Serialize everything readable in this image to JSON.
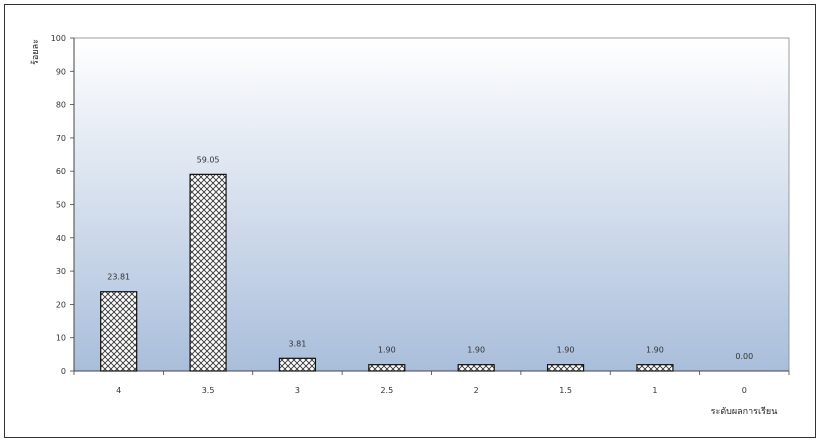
{
  "chart_data": {
    "type": "bar",
    "categories": [
      "4",
      "3.5",
      "3",
      "2.5",
      "2",
      "1.5",
      "1",
      "0"
    ],
    "values": [
      23.81,
      59.05,
      3.81,
      1.9,
      1.9,
      1.9,
      1.9,
      0.0
    ],
    "value_labels": [
      "23.81",
      "59.05",
      "3.81",
      "1.90",
      "1.90",
      "1.90",
      "1.90",
      "0.00"
    ],
    "yticks": [
      "0",
      "10",
      "20",
      "30",
      "40",
      "50",
      "60",
      "70",
      "80",
      "90",
      "100"
    ],
    "ylim": [
      0,
      100
    ],
    "xlabel": "ระดับผลการเรียน",
    "ylabel": "ร้อยละ",
    "title": "",
    "grid": false,
    "bar_pattern": "crosshatch",
    "colors": {
      "plot_gradient_top": "#ffffff",
      "plot_gradient_bottom": "#a9bedb",
      "bar_fill": "#ffffff",
      "bar_hatch": "#333333",
      "axis": "#444444"
    }
  }
}
